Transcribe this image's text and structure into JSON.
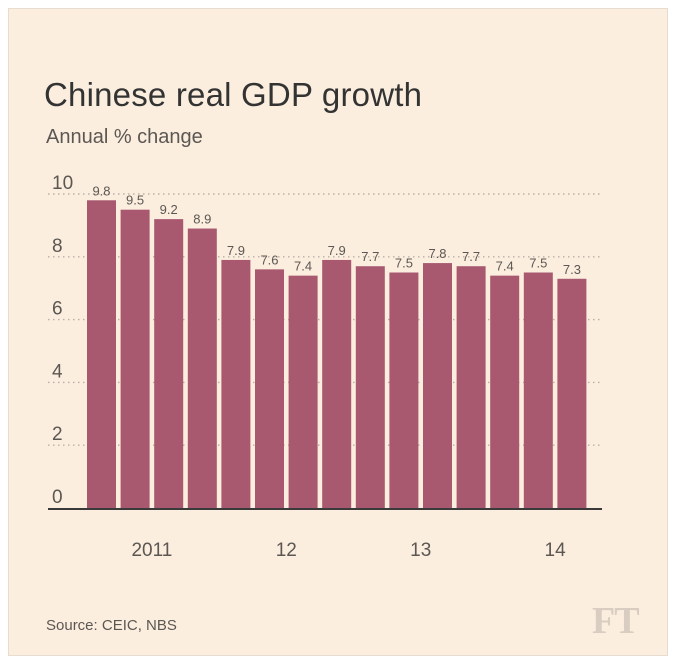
{
  "title": "Chinese real GDP growth",
  "subtitle": "Annual % change",
  "source": "Source: CEIC, NBS",
  "logo_text": "FT",
  "colors": {
    "background": "#fbeedf",
    "bar": "#a8586f",
    "text": "#333333",
    "grid": "#b9b0a6"
  },
  "chart_data": {
    "type": "bar",
    "title": "Chinese real GDP growth",
    "subtitle": "Annual % change",
    "categories": [
      "",
      "",
      "",
      "",
      "",
      "",
      "",
      "",
      "",
      "",
      "",
      "",
      "",
      "",
      ""
    ],
    "values": [
      9.8,
      9.5,
      9.2,
      8.9,
      7.9,
      7.6,
      7.4,
      7.9,
      7.7,
      7.5,
      7.8,
      7.7,
      7.4,
      7.5,
      7.3
    ],
    "data_labels": [
      "9.8",
      "9.5",
      "9.2",
      "8.9",
      "7.9",
      "7.6",
      "7.4",
      "7.9",
      "7.7",
      "7.5",
      "7.8",
      "7.7",
      "7.4",
      "7.5",
      "7.3"
    ],
    "x_tick_labels": [
      {
        "text": "2011",
        "at_bar": 1.5
      },
      {
        "text": "12",
        "at_bar": 5.5
      },
      {
        "text": "13",
        "at_bar": 9.5
      },
      {
        "text": "14",
        "at_bar": 13.5
      }
    ],
    "y_ticks": [
      "0",
      "2",
      "4",
      "6",
      "8",
      "10"
    ],
    "y_tick_values": [
      0,
      2,
      4,
      6,
      8,
      10
    ],
    "ylim": [
      0,
      10
    ],
    "grid": true,
    "legend": "none"
  }
}
